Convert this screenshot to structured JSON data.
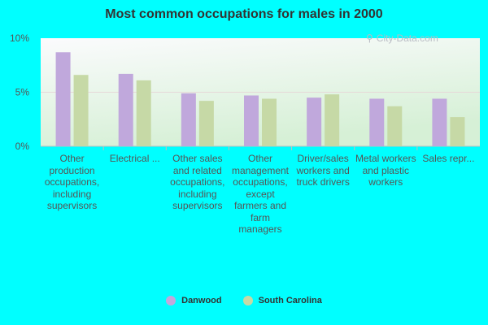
{
  "chart_data": {
    "type": "bar",
    "title": "Most common occupations for males in 2000",
    "categories": [
      "Other production occupations, including supervisors",
      "Electrical ...",
      "Other sales and related occupations, including supervisors",
      "Other management occupations, except farmers and farm managers",
      "Driver/sales workers and truck drivers",
      "Metal workers and plastic workers",
      "Sales repr..."
    ],
    "series": [
      {
        "name": "Danwood",
        "color": "#c0a8dc",
        "values": [
          8.7,
          6.7,
          4.9,
          4.7,
          4.5,
          4.4,
          4.4
        ]
      },
      {
        "name": "South Carolina",
        "color": "#c6d9a6",
        "values": [
          6.6,
          6.1,
          4.2,
          4.4,
          4.8,
          3.7,
          2.7
        ]
      }
    ],
    "y_ticks": [
      "0%",
      "5%",
      "10%"
    ],
    "ylim": [
      0,
      10
    ],
    "xlabel": "",
    "ylabel": ""
  },
  "watermark": "City-Data.com"
}
